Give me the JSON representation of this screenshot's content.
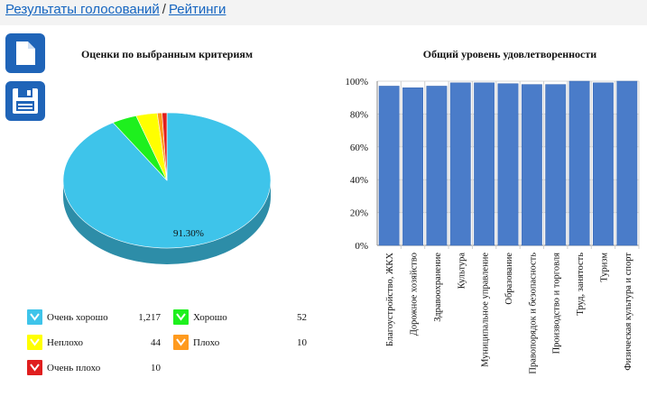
{
  "breadcrumb": {
    "link1": "Результаты голосований",
    "separator": "/",
    "link2": "Рейтинги"
  },
  "toolbar": {
    "new_icon": "document-icon",
    "save_icon": "floppy-disk-icon",
    "button_color": "#1f64b8"
  },
  "pie_chart": {
    "title": "Оценки по выбранным критериям",
    "center_label": "91.30%",
    "chart_data": {
      "type": "pie",
      "slices": [
        {
          "name": "Очень хорошо",
          "value": 1217,
          "color": "#3ec4ea"
        },
        {
          "name": "Хорошо",
          "value": 52,
          "color": "#1ef01e"
        },
        {
          "name": "Неплохо",
          "value": 44,
          "color": "#ffff00"
        },
        {
          "name": "Плохо",
          "value": 10,
          "color": "#ff9a1e"
        },
        {
          "name": "Очень плохо",
          "value": 10,
          "color": "#e01e1e"
        }
      ]
    }
  },
  "legend": [
    {
      "label": "Очень хорошо",
      "count": "1,217",
      "color": "#3ec4ea"
    },
    {
      "label": "Хорошо",
      "count": "52",
      "color": "#1ef01e"
    },
    {
      "label": "Неплохо",
      "count": "44",
      "color": "#ffff00"
    },
    {
      "label": "Плохо",
      "count": "10",
      "color": "#ff9a1e"
    },
    {
      "label": "Очень плохо",
      "count": "10",
      "color": "#e01e1e"
    }
  ],
  "bar_chart": {
    "title": "Общий уровень удовлетворенности",
    "chart_data": {
      "type": "bar",
      "categories": [
        "Благоустройство, ЖКХ",
        "Дорожное хозяйство",
        "Здравоохранение",
        "Культура",
        "Муниципальное управление",
        "Образование",
        "Правопорядок и безопасность",
        "Производство и торговля",
        "Труд, занятость",
        "Туризм",
        "Физическая культура и спорт"
      ],
      "values": [
        97,
        96,
        97,
        99,
        99,
        98.5,
        98,
        98,
        100,
        99,
        100
      ],
      "ylim": [
        0,
        100
      ],
      "yticks": [
        "0%",
        "20%",
        "40%",
        "60%",
        "80%",
        "100%"
      ],
      "bar_color": "#4a7cc9",
      "grid": true
    }
  }
}
